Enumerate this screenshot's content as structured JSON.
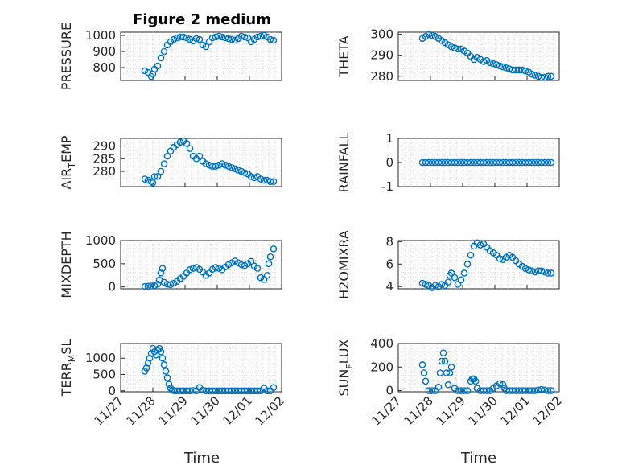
{
  "figure": {
    "title": "Figure 2 medium",
    "xlabel": "Time",
    "xticks": [
      "11/27",
      "11/28",
      "11/29",
      "11/30",
      "12/01",
      "12/02"
    ],
    "marker_color": "#0072BD"
  },
  "chart_data": [
    {
      "type": "scatter",
      "ylabel": "PRESSURE",
      "ylim": [
        720,
        1020
      ],
      "yticks": [
        800,
        900,
        1000
      ],
      "x_range": [
        "11/27",
        "12/02"
      ],
      "x_extent": [
        "11/27 18:00",
        "12/01 18:00"
      ],
      "series": [
        {
          "x": [
            0.75,
            0.85,
            0.95,
            1.0,
            1.05,
            1.15,
            1.25,
            1.35,
            1.45,
            1.55,
            1.65,
            1.75,
            1.85,
            1.95,
            2.05,
            2.15,
            2.25,
            2.35,
            2.45,
            2.55,
            2.65,
            2.75,
            2.85,
            2.95,
            3.05,
            3.15,
            3.25,
            3.35,
            3.45,
            3.55,
            3.65,
            3.75,
            3.85,
            3.95,
            4.05,
            4.15,
            4.25,
            4.35,
            4.45,
            4.55,
            4.65,
            4.75
          ],
          "y": [
            780,
            770,
            745,
            760,
            790,
            810,
            860,
            900,
            940,
            960,
            975,
            985,
            990,
            990,
            985,
            975,
            965,
            980,
            975,
            940,
            930,
            960,
            985,
            990,
            995,
            990,
            985,
            980,
            975,
            970,
            980,
            995,
            990,
            985,
            960,
            975,
            990,
            995,
            1000,
            990,
            975,
            970
          ]
        }
      ]
    },
    {
      "type": "scatter",
      "ylabel": "THETA",
      "ylim": [
        278,
        301
      ],
      "yticks": [
        280,
        290,
        300
      ],
      "x_range": [
        "11/27",
        "12/02"
      ],
      "x_extent": [
        "11/27 18:00",
        "12/01 18:00"
      ],
      "series": [
        {
          "x": [
            0.75,
            0.85,
            0.95,
            1.05,
            1.15,
            1.25,
            1.35,
            1.45,
            1.55,
            1.65,
            1.75,
            1.85,
            1.95,
            2.05,
            2.15,
            2.25,
            2.35,
            2.45,
            2.55,
            2.65,
            2.75,
            2.85,
            2.95,
            3.05,
            3.15,
            3.25,
            3.35,
            3.45,
            3.55,
            3.65,
            3.75,
            3.85,
            3.95,
            4.05,
            4.15,
            4.25,
            4.35,
            4.45,
            4.55,
            4.65,
            4.75
          ],
          "y": [
            298,
            299,
            300,
            299.5,
            299,
            298,
            297,
            296,
            295,
            294,
            293.5,
            293,
            293,
            292,
            291,
            289.5,
            288,
            289,
            288,
            287,
            287.5,
            286.5,
            286,
            285.5,
            285,
            284.5,
            284,
            283.5,
            283,
            283,
            283,
            283,
            282.5,
            282,
            281,
            280.5,
            280,
            279.5,
            279.5,
            280,
            280
          ]
        }
      ]
    },
    {
      "type": "scatter",
      "ylabel": "AIR",
      "ylabel_sub": "T",
      "ylabel_tail": "EMP",
      "ylim": [
        274,
        293
      ],
      "yticks": [
        280,
        285,
        290
      ],
      "x_range": [
        "11/27",
        "12/02"
      ],
      "x_extent": [
        "11/27 18:00",
        "12/01 18:00"
      ],
      "series": [
        {
          "x": [
            0.75,
            0.85,
            0.95,
            1.0,
            1.05,
            1.15,
            1.25,
            1.35,
            1.45,
            1.55,
            1.65,
            1.75,
            1.85,
            1.95,
            2.05,
            2.15,
            2.25,
            2.35,
            2.45,
            2.55,
            2.65,
            2.75,
            2.85,
            2.95,
            3.05,
            3.15,
            3.25,
            3.35,
            3.45,
            3.55,
            3.65,
            3.75,
            3.85,
            3.95,
            4.05,
            4.15,
            4.25,
            4.35,
            4.45,
            4.55,
            4.65,
            4.75
          ],
          "y": [
            277,
            276.5,
            276,
            275.5,
            278,
            278,
            280,
            283,
            286,
            288,
            289.5,
            290.5,
            291.5,
            292,
            291,
            289,
            286,
            285,
            286,
            284,
            283,
            282.5,
            282,
            282,
            282.5,
            283,
            282.5,
            282,
            281.5,
            281,
            280.5,
            280,
            279.5,
            279,
            278,
            277.5,
            278,
            277,
            276.5,
            276.5,
            276,
            276
          ]
        }
      ]
    },
    {
      "type": "scatter",
      "ylabel": "RAINFALL",
      "ylim": [
        -1,
        1
      ],
      "yticks": [
        -1,
        0,
        1
      ],
      "x_range": [
        "11/27",
        "12/02"
      ],
      "x_extent": [
        "11/27 18:00",
        "12/01 18:00"
      ],
      "series": [
        {
          "x": [
            0.75,
            0.85,
            0.95,
            1.05,
            1.15,
            1.25,
            1.35,
            1.45,
            1.55,
            1.65,
            1.75,
            1.85,
            1.95,
            2.05,
            2.15,
            2.25,
            2.35,
            2.45,
            2.55,
            2.65,
            2.75,
            2.85,
            2.95,
            3.05,
            3.15,
            3.25,
            3.35,
            3.45,
            3.55,
            3.65,
            3.75,
            3.85,
            3.95,
            4.05,
            4.15,
            4.25,
            4.35,
            4.45,
            4.55,
            4.65,
            4.75
          ],
          "y": [
            0,
            0,
            0,
            0,
            0,
            0,
            0,
            0,
            0,
            0,
            0,
            0,
            0,
            0,
            0,
            0,
            0,
            0,
            0,
            0,
            0,
            0,
            0,
            0,
            0,
            0,
            0,
            0,
            0,
            0,
            0,
            0,
            0,
            0,
            0,
            0,
            0,
            0,
            0,
            0,
            0
          ]
        }
      ]
    },
    {
      "type": "scatter",
      "ylabel": "MIXDEPTH",
      "ylim": [
        -40,
        1000
      ],
      "yticks": [
        0,
        500,
        1000
      ],
      "x_range": [
        "11/27",
        "12/02"
      ],
      "x_extent": [
        "11/27 18:00",
        "12/01 18:00"
      ],
      "series": [
        {
          "x": [
            0.75,
            0.85,
            0.95,
            1.05,
            1.15,
            1.2,
            1.25,
            1.3,
            1.35,
            1.45,
            1.55,
            1.65,
            1.75,
            1.85,
            1.95,
            2.05,
            2.15,
            2.25,
            2.35,
            2.45,
            2.55,
            2.65,
            2.75,
            2.85,
            2.95,
            3.05,
            3.15,
            3.25,
            3.35,
            3.45,
            3.55,
            3.65,
            3.75,
            3.85,
            3.95,
            4.05,
            4.15,
            4.25,
            4.35,
            4.45,
            4.55,
            4.6,
            4.65,
            4.75
          ],
          "y": [
            10,
            15,
            20,
            30,
            60,
            150,
            300,
            400,
            100,
            60,
            50,
            80,
            120,
            180,
            230,
            300,
            370,
            400,
            420,
            380,
            320,
            250,
            300,
            380,
            420,
            400,
            370,
            430,
            480,
            520,
            560,
            520,
            480,
            460,
            500,
            550,
            450,
            400,
            200,
            160,
            250,
            500,
            650,
            820
          ]
        }
      ]
    },
    {
      "type": "scatter",
      "ylabel": "H2OMIXRA",
      "ylim": [
        3.8,
        8.1
      ],
      "yticks": [
        4,
        6,
        8
      ],
      "x_range": [
        "11/27",
        "12/02"
      ],
      "x_extent": [
        "11/27 18:00",
        "12/01 18:00"
      ],
      "series": [
        {
          "x": [
            0.75,
            0.85,
            0.95,
            1.05,
            1.15,
            1.25,
            1.35,
            1.45,
            1.55,
            1.6,
            1.65,
            1.75,
            1.85,
            1.95,
            2.05,
            2.15,
            2.25,
            2.35,
            2.45,
            2.55,
            2.65,
            2.75,
            2.85,
            2.95,
            3.05,
            3.15,
            3.25,
            3.35,
            3.45,
            3.55,
            3.65,
            3.75,
            3.85,
            3.95,
            4.05,
            4.15,
            4.25,
            4.35,
            4.45,
            4.55,
            4.65,
            4.75
          ],
          "y": [
            4.3,
            4.2,
            4.1,
            3.9,
            4.1,
            4.0,
            4.2,
            4.1,
            4.4,
            5.0,
            5.2,
            4.8,
            4.2,
            4.6,
            5.2,
            6.0,
            6.8,
            7.6,
            7.9,
            7.7,
            7.8,
            7.5,
            7.2,
            7.0,
            6.8,
            6.5,
            6.4,
            6.6,
            6.8,
            6.6,
            6.3,
            6.0,
            5.8,
            5.6,
            5.5,
            5.4,
            5.3,
            5.4,
            5.4,
            5.3,
            5.2,
            5.2
          ]
        }
      ]
    },
    {
      "type": "scatter",
      "ylabel": "TERR",
      "ylabel_sub": "M",
      "ylabel_tail": "SL",
      "ylim": [
        -30,
        1450
      ],
      "yticks": [
        0,
        500,
        1000
      ],
      "x_range": [
        "11/27",
        "12/02"
      ],
      "x_extent": [
        "11/27 18:00",
        "12/01 18:00"
      ],
      "series": [
        {
          "x": [
            0.75,
            0.8,
            0.85,
            0.9,
            0.95,
            1.0,
            1.05,
            1.1,
            1.15,
            1.2,
            1.25,
            1.3,
            1.35,
            1.4,
            1.45,
            1.5,
            1.55,
            1.6,
            1.65,
            1.75,
            1.85,
            1.95,
            2.05,
            2.15,
            2.25,
            2.35,
            2.45,
            2.55,
            2.65,
            2.75,
            2.85,
            2.95,
            3.05,
            3.15,
            3.25,
            3.35,
            3.45,
            3.55,
            3.65,
            3.75,
            3.85,
            3.95,
            4.05,
            4.15,
            4.25,
            4.35,
            4.45,
            4.55,
            4.65,
            4.75
          ],
          "y": [
            600,
            700,
            850,
            1000,
            1150,
            1300,
            1200,
            1100,
            1250,
            1300,
            1200,
            1000,
            800,
            600,
            400,
            200,
            80,
            20,
            5,
            0,
            0,
            0,
            0,
            0,
            10,
            0,
            100,
            20,
            0,
            0,
            0,
            0,
            0,
            0,
            0,
            0,
            0,
            0,
            0,
            0,
            0,
            0,
            0,
            0,
            0,
            0,
            80,
            0,
            0,
            100
          ]
        }
      ]
    },
    {
      "type": "scatter",
      "ylabel": "SUN",
      "ylabel_sub": "F",
      "ylabel_tail": "LUX",
      "ylim": [
        -10,
        400
      ],
      "yticks": [
        0,
        200,
        400
      ],
      "x_range": [
        "11/27",
        "12/02"
      ],
      "x_extent": [
        "11/27 18:00",
        "12/01 18:00"
      ],
      "series": [
        {
          "x": [
            0.75,
            0.8,
            0.85,
            0.95,
            1.05,
            1.15,
            1.25,
            1.3,
            1.35,
            1.4,
            1.45,
            1.5,
            1.55,
            1.6,
            1.65,
            1.75,
            1.85,
            1.95,
            2.05,
            2.15,
            2.25,
            2.3,
            2.35,
            2.4,
            2.45,
            2.55,
            2.65,
            2.75,
            2.85,
            2.95,
            3.05,
            3.15,
            3.25,
            3.3,
            3.35,
            3.45,
            3.55,
            3.65,
            3.75,
            3.85,
            3.95,
            4.05,
            4.15,
            4.25,
            4.35,
            4.45,
            4.55,
            4.65,
            4.75
          ],
          "y": [
            220,
            150,
            80,
            0,
            0,
            0,
            30,
            150,
            250,
            320,
            250,
            150,
            50,
            150,
            200,
            20,
            0,
            0,
            0,
            0,
            80,
            100,
            100,
            80,
            20,
            0,
            0,
            0,
            0,
            20,
            40,
            60,
            50,
            20,
            0,
            0,
            0,
            0,
            0,
            0,
            0,
            0,
            0,
            0,
            5,
            10,
            5,
            0,
            0
          ]
        }
      ]
    }
  ]
}
